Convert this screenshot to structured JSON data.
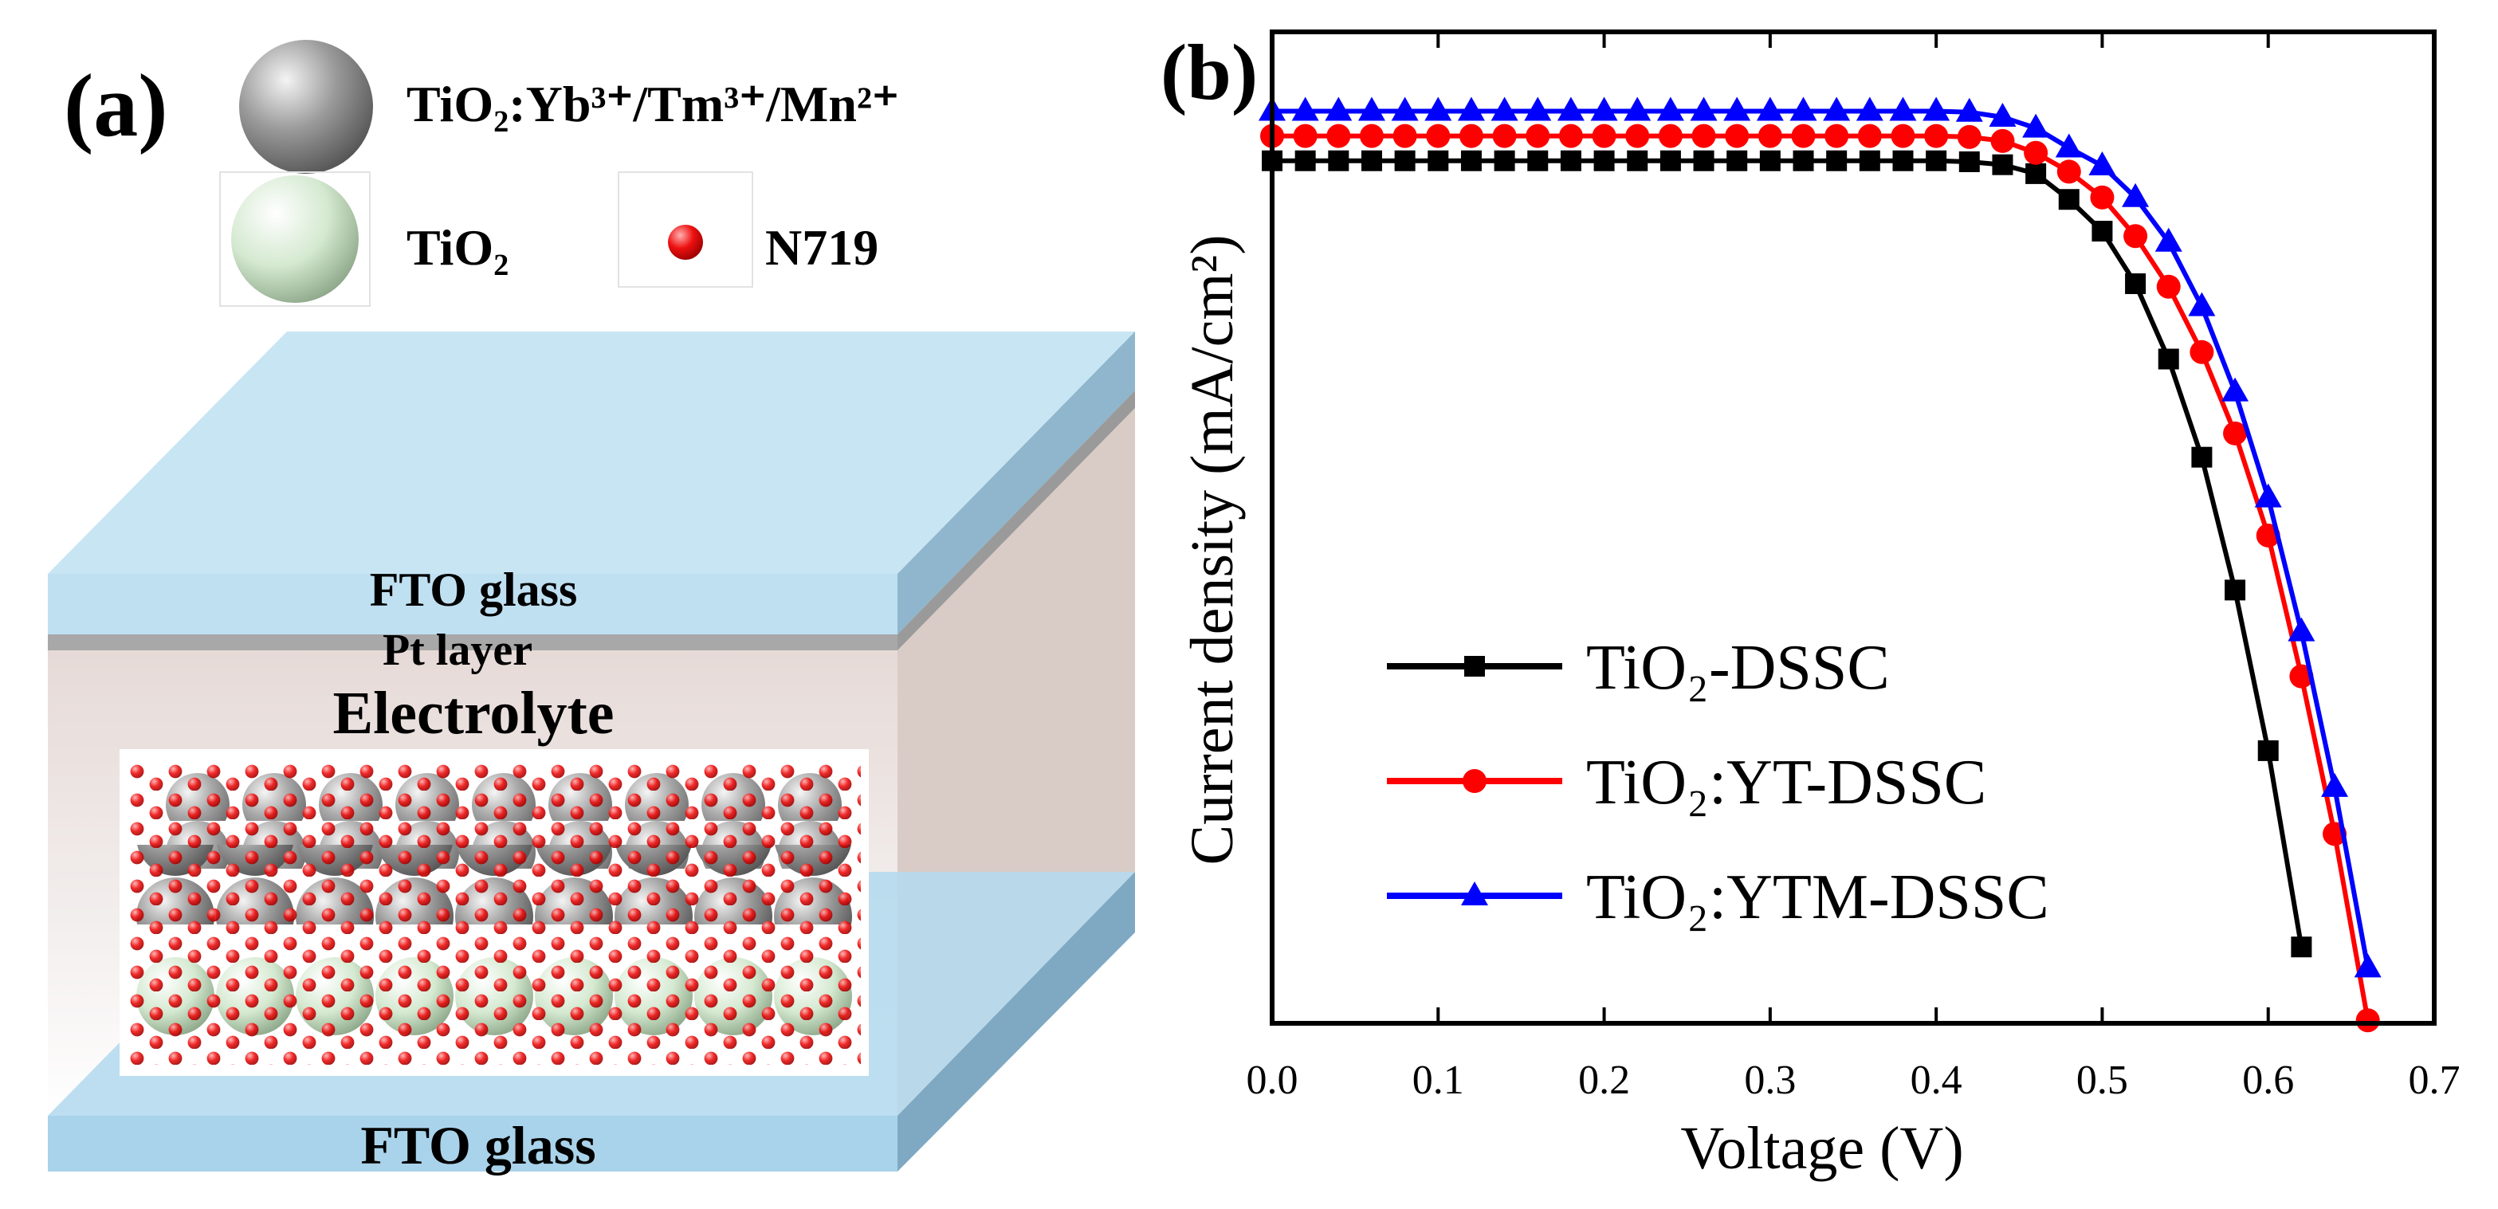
{
  "panel_a": {
    "label": "(a)",
    "legend": [
      {
        "label": "TiO₂:Yb³⁺/Tm³⁺/Mn²⁺"
      },
      {
        "label": "TiO₂"
      },
      {
        "label": "N719"
      }
    ],
    "layers": {
      "top": "FTO glass",
      "pt": "Pt layer",
      "electrolyte": "Electrolyte",
      "bottom": "FTO glass"
    }
  },
  "chart_data": {
    "type": "line",
    "panel_label": "(b)",
    "x_label": "Voltage (V)",
    "y_label": "Current density (mA/cm²)",
    "x": [
      0,
      0.02,
      0.04,
      0.06,
      0.08,
      0.1,
      0.12,
      0.14,
      0.16,
      0.18,
      0.2,
      0.22,
      0.24,
      0.26,
      0.28,
      0.3,
      0.32,
      0.34,
      0.36,
      0.38,
      0.4,
      0.42,
      0.44,
      0.46,
      0.48,
      0.5,
      0.52,
      0.54,
      0.56,
      0.58,
      0.6,
      0.62,
      0.64,
      0.66
    ],
    "xlim": [
      0,
      0.7
    ],
    "xticks": [
      {
        "value": 0,
        "label": "0.0"
      },
      0.1,
      0.2,
      0.3,
      0.4,
      0.5,
      0.6,
      0.7
    ],
    "ylim": [
      0,
      1
    ],
    "legend": "left",
    "series": [
      {
        "name": "TiO₂-DSSC",
        "color": "#000000",
        "marker": "square",
        "values": [
          0.87,
          0.87,
          0.87,
          0.87,
          0.87,
          0.87,
          0.87,
          0.87,
          0.87,
          0.87,
          0.87,
          0.87,
          0.87,
          0.87,
          0.87,
          0.87,
          0.87,
          0.87,
          0.87,
          0.87,
          0.87,
          0.869,
          0.866,
          0.857,
          0.831,
          0.799,
          0.746,
          0.67,
          0.571,
          0.437,
          0.275,
          0.077,
          null,
          null
        ]
      },
      {
        "name": "TiO₂:YT-DSSC",
        "color": "#ff0000",
        "marker": "circle",
        "values": [
          0.895,
          0.895,
          0.895,
          0.895,
          0.895,
          0.895,
          0.895,
          0.895,
          0.895,
          0.895,
          0.895,
          0.895,
          0.895,
          0.895,
          0.895,
          0.895,
          0.895,
          0.895,
          0.895,
          0.895,
          0.895,
          0.894,
          0.89,
          0.878,
          0.859,
          0.833,
          0.794,
          0.743,
          0.677,
          0.595,
          0.492,
          0.35,
          0.191,
          0.003
        ]
      },
      {
        "name": "TiO₂:YTM-DSSC",
        "color": "#0000ff",
        "marker": "triangle",
        "values": [
          0.92,
          0.92,
          0.92,
          0.92,
          0.92,
          0.92,
          0.92,
          0.92,
          0.92,
          0.92,
          0.92,
          0.92,
          0.92,
          0.92,
          0.92,
          0.92,
          0.92,
          0.92,
          0.92,
          0.92,
          0.92,
          0.919,
          0.914,
          0.903,
          0.883,
          0.865,
          0.833,
          0.788,
          0.723,
          0.637,
          0.53,
          0.395,
          0.238,
          0.056
        ]
      }
    ]
  }
}
